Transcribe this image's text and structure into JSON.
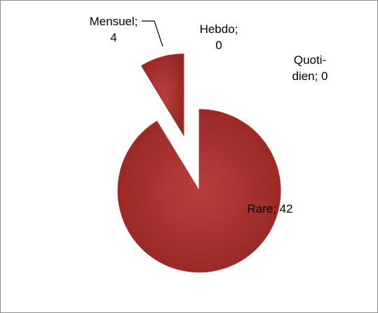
{
  "chart_data": {
    "type": "pie",
    "categories": [
      "Rare",
      "Mensuel",
      "Hebdo",
      "Quoti-dien"
    ],
    "values": [
      42,
      4,
      0,
      0
    ],
    "value_labels": [
      "Rare; 42",
      "Mensuel; 4",
      "Hebdo; 0",
      "Quoti-dien; 0"
    ],
    "color": "#a3302d"
  }
}
